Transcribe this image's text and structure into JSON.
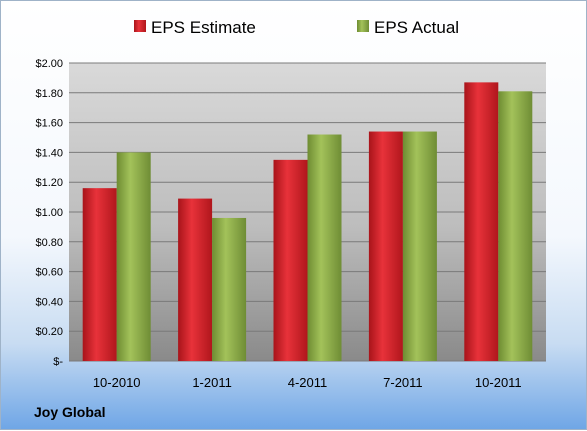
{
  "company": "Joy Global",
  "colors": {
    "estimate": "#d81e24",
    "actual": "#8fb04a"
  },
  "chart_data": {
    "type": "bar",
    "categories": [
      "10-2010",
      "1-2011",
      "4-2011",
      "7-2011",
      "10-2011"
    ],
    "series": [
      {
        "name": "EPS Estimate",
        "values": [
          1.16,
          1.09,
          1.35,
          1.54,
          1.87
        ]
      },
      {
        "name": "EPS Actual",
        "values": [
          1.4,
          0.96,
          1.52,
          1.54,
          1.81
        ]
      }
    ],
    "ylim": [
      0,
      2.0
    ],
    "yticks": [
      "$-",
      "$0.20",
      "$0.40",
      "$0.60",
      "$0.80",
      "$1.00",
      "$1.20",
      "$1.40",
      "$1.60",
      "$1.80",
      "$2.00"
    ],
    "grid": true,
    "legend": "top"
  }
}
